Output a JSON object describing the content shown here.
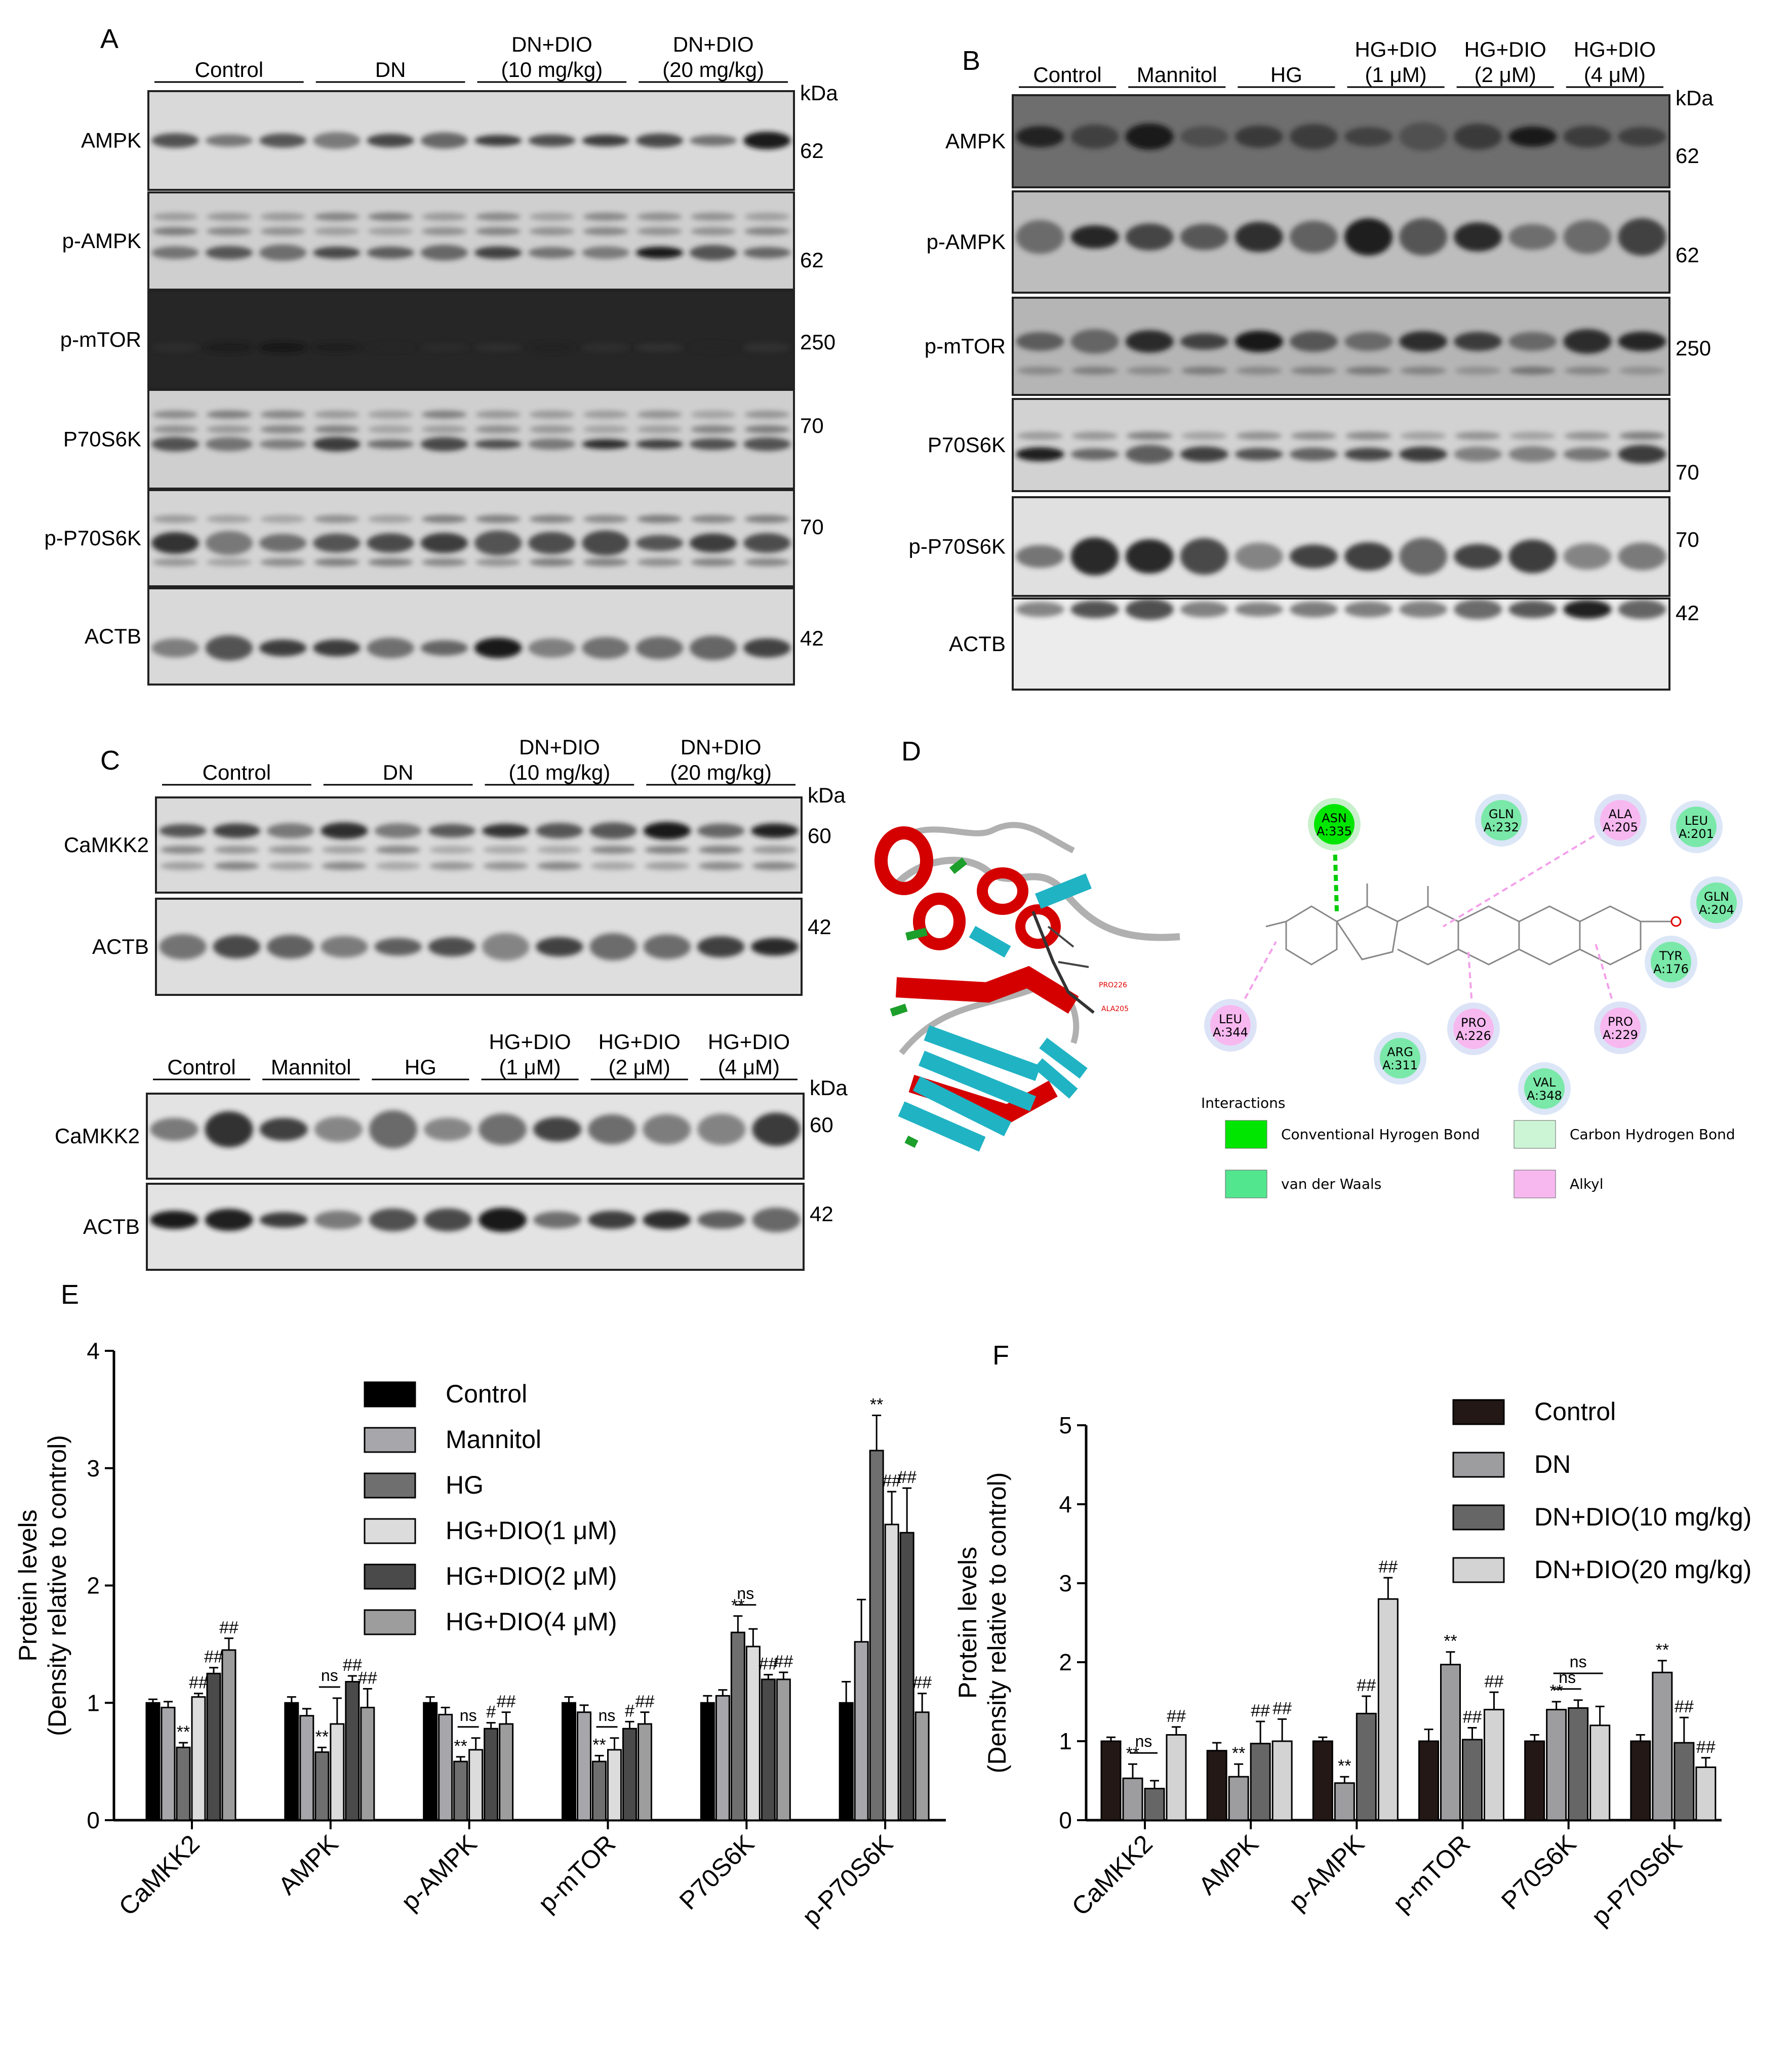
{
  "panel_letters": {
    "a": "A",
    "b": "B",
    "c": "C",
    "d": "D",
    "e": "E",
    "f": "F"
  },
  "kda_label": "kDa",
  "panel_a": {
    "groups": [
      "Control",
      "DN",
      "DN+DIO\n(10 mg/kg)",
      "DN+DIO\n(20 mg/kg)"
    ],
    "rows": [
      {
        "label": "AMPK",
        "kda": "62"
      },
      {
        "label": "p-AMPK",
        "kda": "62"
      },
      {
        "label": "p-mTOR",
        "kda": "250"
      },
      {
        "label": "P70S6K",
        "kda": "70"
      },
      {
        "label": "p-P70S6K",
        "kda": "70"
      },
      {
        "label": "ACTB",
        "kda": "42"
      }
    ]
  },
  "panel_b": {
    "groups": [
      "Control",
      "Mannitol",
      "HG",
      "HG+DIO\n(1 μM)",
      "HG+DIO\n(2 μM)",
      "HG+DIO\n(4 μM)"
    ],
    "rows": [
      {
        "label": "AMPK",
        "kda": "62"
      },
      {
        "label": "p-AMPK",
        "kda": "62"
      },
      {
        "label": "p-mTOR",
        "kda": "250"
      },
      {
        "label": "P70S6K",
        "kda": "70"
      },
      {
        "label": "p-P70S6K",
        "kda": "70"
      },
      {
        "label": "ACTB",
        "kda": "42"
      }
    ]
  },
  "panel_c_top": {
    "groups": [
      "Control",
      "DN",
      "DN+DIO\n(10 mg/kg)",
      "DN+DIO\n(20 mg/kg)"
    ],
    "rows": [
      {
        "label": "CaMKK2",
        "kda": "60"
      },
      {
        "label": "ACTB",
        "kda": "42"
      }
    ]
  },
  "panel_c_bottom": {
    "groups": [
      "Control",
      "Mannitol",
      "HG",
      "HG+DIO\n(1 μM)",
      "HG+DIO\n(2 μM)",
      "HG+DIO\n(4 μM)"
    ],
    "rows": [
      {
        "label": "CaMKK2",
        "kda": "60"
      },
      {
        "label": "ACTB",
        "kda": "42"
      }
    ]
  },
  "panel_d": {
    "residues": [
      {
        "name": "ASN\nA:335",
        "type": "conventional"
      },
      {
        "name": "GLN\nA:232",
        "type": "vdw"
      },
      {
        "name": "ALA\nA:205",
        "type": "alkyl"
      },
      {
        "name": "LEU\nA:201",
        "type": "vdw"
      },
      {
        "name": "GLN\nA:204",
        "type": "vdw"
      },
      {
        "name": "TYR\nA:176",
        "type": "vdw"
      },
      {
        "name": "PRO\nA:229",
        "type": "alkyl"
      },
      {
        "name": "PRO\nA:226",
        "type": "alkyl"
      },
      {
        "name": "ARG\nA:311",
        "type": "vdw"
      },
      {
        "name": "VAL\nA:348",
        "type": "vdw"
      },
      {
        "name": "LEU\nA:344",
        "type": "alkyl"
      }
    ],
    "ribbon_labels": [
      "PRO226",
      "ALA205"
    ],
    "legend_title": "Interactions",
    "legend": [
      {
        "label": "Conventional Hyrogen Bond",
        "color": "#00e600"
      },
      {
        "label": "Carbon Hydrogen Bond",
        "color": "#ccf5d6"
      },
      {
        "label": "van der Waals",
        "color": "#52e68f"
      },
      {
        "label": "Alkyl",
        "color": "#f7b8f0"
      }
    ]
  },
  "chart_data": [
    {
      "type": "bar",
      "panel": "E",
      "ylabel": "Protein levels\n(Density relative to control)",
      "ylim": [
        0,
        4
      ],
      "yticks": [
        "0",
        "1",
        "2",
        "3",
        "4"
      ],
      "categories": [
        "CaMKK2",
        "AMPK",
        "p-AMPK",
        "p-mTOR",
        "P70S6K",
        "p-P70S6K"
      ],
      "legend_position": "top-center",
      "series": [
        {
          "name": "Control",
          "color": "#000000",
          "values": [
            1.0,
            1.0,
            1.0,
            1.0,
            1.0,
            1.0
          ],
          "errors": [
            0.03,
            0.05,
            0.05,
            0.05,
            0.06,
            0.18
          ]
        },
        {
          "name": "Mannitol",
          "color": "#a7a7ab",
          "values": [
            0.96,
            0.89,
            0.9,
            0.92,
            1.06,
            1.52
          ],
          "errors": [
            0.05,
            0.06,
            0.06,
            0.06,
            0.05,
            0.36
          ]
        },
        {
          "name": "HG",
          "color": "#6f6f6f",
          "values": [
            0.62,
            0.58,
            0.5,
            0.5,
            1.6,
            3.15
          ],
          "errors": [
            0.04,
            0.04,
            0.04,
            0.05,
            0.14,
            0.3
          ]
        },
        {
          "name": "HG+DIO(1 μM)",
          "color": "#dcdcdc",
          "values": [
            1.05,
            0.82,
            0.6,
            0.6,
            1.48,
            2.52
          ],
          "errors": [
            0.03,
            0.22,
            0.1,
            0.1,
            0.15,
            0.28
          ]
        },
        {
          "name": "HG+DIO(2 μM)",
          "color": "#4a4a4a",
          "values": [
            1.25,
            1.18,
            0.78,
            0.78,
            1.2,
            2.45
          ],
          "errors": [
            0.05,
            0.05,
            0.05,
            0.06,
            0.04,
            0.38
          ]
        },
        {
          "name": "HG+DIO(4 μM)",
          "color": "#9d9d9d",
          "values": [
            1.45,
            0.96,
            0.82,
            0.82,
            1.2,
            0.92
          ],
          "errors": [
            0.1,
            0.16,
            0.1,
            0.1,
            0.06,
            0.16
          ]
        }
      ],
      "annotations": [
        {
          "category": "CaMKK2",
          "series": "HG",
          "text": "**"
        },
        {
          "category": "CaMKK2",
          "series": "HG+DIO(1 μM)",
          "text": "##"
        },
        {
          "category": "CaMKK2",
          "series": "HG+DIO(2 μM)",
          "text": "##"
        },
        {
          "category": "CaMKK2",
          "series": "HG+DIO(4 μM)",
          "text": "##"
        },
        {
          "category": "AMPK",
          "series": "HG",
          "text": "**"
        },
        {
          "category": "AMPK",
          "series": "HG+DIO(1 μM)",
          "text": "ns",
          "bracket_from": "HG"
        },
        {
          "category": "AMPK",
          "series": "HG+DIO(2 μM)",
          "text": "##"
        },
        {
          "category": "AMPK",
          "series": "HG+DIO(4 μM)",
          "text": "##"
        },
        {
          "category": "p-AMPK",
          "series": "HG",
          "text": "**"
        },
        {
          "category": "p-AMPK",
          "series": "HG+DIO(1 μM)",
          "text": "ns",
          "bracket_from": "HG"
        },
        {
          "category": "p-AMPK",
          "series": "HG+DIO(2 μM)",
          "text": "#"
        },
        {
          "category": "p-AMPK",
          "series": "HG+DIO(4 μM)",
          "text": "##"
        },
        {
          "category": "p-mTOR",
          "series": "HG",
          "text": "**"
        },
        {
          "category": "p-mTOR",
          "series": "HG+DIO(1 μM)",
          "text": "ns",
          "bracket_from": "HG"
        },
        {
          "category": "p-mTOR",
          "series": "HG+DIO(2 μM)",
          "text": "#"
        },
        {
          "category": "p-mTOR",
          "series": "HG+DIO(4 μM)",
          "text": "##"
        },
        {
          "category": "P70S6K",
          "series": "HG",
          "text": "**"
        },
        {
          "category": "P70S6K",
          "series": "HG+DIO(1 μM)",
          "text": "ns",
          "bracket_from": "HG"
        },
        {
          "category": "P70S6K",
          "series": "HG+DIO(2 μM)",
          "text": "##"
        },
        {
          "category": "P70S6K",
          "series": "HG+DIO(4 μM)",
          "text": "##"
        },
        {
          "category": "p-P70S6K",
          "series": "HG",
          "text": "**"
        },
        {
          "category": "p-P70S6K",
          "series": "HG+DIO(1 μM)",
          "text": "##"
        },
        {
          "category": "p-P70S6K",
          "series": "HG+DIO(2 μM)",
          "text": "##"
        },
        {
          "category": "p-P70S6K",
          "series": "HG+DIO(4 μM)",
          "text": "##"
        }
      ]
    },
    {
      "type": "bar",
      "panel": "F",
      "ylabel": "Protein levels\n(Density relative to control)",
      "ylim": [
        0,
        5
      ],
      "yticks": [
        "0",
        "1",
        "2",
        "3",
        "4",
        "5"
      ],
      "categories": [
        "CaMKK2",
        "AMPK",
        "p-AMPK",
        "p-mTOR",
        "P70S6K",
        "p-P70S6K"
      ],
      "legend_position": "top-right",
      "series": [
        {
          "name": "Control",
          "color": "#231815",
          "values": [
            1.0,
            0.88,
            1.0,
            1.0,
            1.0,
            1.0
          ],
          "errors": [
            0.05,
            0.1,
            0.05,
            0.15,
            0.08,
            0.08
          ]
        },
        {
          "name": "DN",
          "color": "#9d9da0",
          "values": [
            0.53,
            0.55,
            0.47,
            1.97,
            1.4,
            1.87
          ],
          "errors": [
            0.18,
            0.16,
            0.08,
            0.16,
            0.1,
            0.15
          ]
        },
        {
          "name": "DN+DIO(10 mg/kg)",
          "color": "#666666",
          "values": [
            0.4,
            0.97,
            1.35,
            1.02,
            1.42,
            0.98
          ],
          "errors": [
            0.1,
            0.28,
            0.22,
            0.15,
            0.1,
            0.32
          ]
        },
        {
          "name": "DN+DIO(20 mg/kg)",
          "color": "#d3d3d3",
          "values": [
            1.08,
            1.0,
            2.8,
            1.4,
            1.2,
            0.67
          ],
          "errors": [
            0.1,
            0.28,
            0.27,
            0.22,
            0.24,
            0.12
          ]
        }
      ],
      "annotations": [
        {
          "category": "CaMKK2",
          "series": "DN",
          "text": "**"
        },
        {
          "category": "CaMKK2",
          "series": "DN+DIO(10 mg/kg)",
          "text": "ns",
          "bracket_from": "DN"
        },
        {
          "category": "CaMKK2",
          "series": "DN+DIO(20 mg/kg)",
          "text": "##"
        },
        {
          "category": "AMPK",
          "series": "DN",
          "text": "**"
        },
        {
          "category": "AMPK",
          "series": "DN+DIO(10 mg/kg)",
          "text": "##"
        },
        {
          "category": "AMPK",
          "series": "DN+DIO(20 mg/kg)",
          "text": "##"
        },
        {
          "category": "p-AMPK",
          "series": "DN",
          "text": "**"
        },
        {
          "category": "p-AMPK",
          "series": "DN+DIO(10 mg/kg)",
          "text": "##"
        },
        {
          "category": "p-AMPK",
          "series": "DN+DIO(20 mg/kg)",
          "text": "##"
        },
        {
          "category": "p-mTOR",
          "series": "DN",
          "text": "**"
        },
        {
          "category": "p-mTOR",
          "series": "DN+DIO(10 mg/kg)",
          "text": "##"
        },
        {
          "category": "p-mTOR",
          "series": "DN+DIO(20 mg/kg)",
          "text": "##"
        },
        {
          "category": "P70S6K",
          "series": "DN",
          "text": "**"
        },
        {
          "category": "P70S6K",
          "series": "DN+DIO(10 mg/kg)",
          "text": "ns",
          "bracket_from": "DN"
        },
        {
          "category": "P70S6K",
          "series": "DN+DIO(20 mg/kg)",
          "text": "ns",
          "bracket_from": "DN"
        },
        {
          "category": "p-P70S6K",
          "series": "DN",
          "text": "**"
        },
        {
          "category": "p-P70S6K",
          "series": "DN+DIO(10 mg/kg)",
          "text": "##"
        },
        {
          "category": "p-P70S6K",
          "series": "DN+DIO(20 mg/kg)",
          "text": "##"
        }
      ]
    }
  ]
}
